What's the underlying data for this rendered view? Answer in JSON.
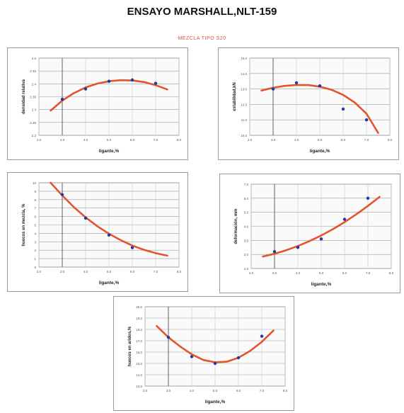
{
  "title": "ENSAYO MARSHALL,NLT-159",
  "subtitle": "MEZCLA TIPO S20",
  "colors": {
    "curve": "#e3542c",
    "point": "#1f3aa8",
    "grid": "#bdbdbd",
    "axis": "#555555"
  },
  "chart_data": [
    {
      "type": "scatter",
      "xlabel": "ligante,%",
      "ylabel": "densidad relativa",
      "xlim": [
        2,
        8
      ],
      "ylim": [
        2.2,
        2.5
      ],
      "xticks": [
        "2.0",
        "3.0",
        "4.0",
        "5.0",
        "6.0",
        "7.0",
        "8.0"
      ],
      "yticks": [
        "2.2",
        "2.25",
        "2.3",
        "2.35",
        "2.4",
        "2.45",
        "2.5"
      ],
      "points": {
        "x": [
          3,
          4,
          5,
          6,
          7
        ],
        "y": [
          2.34,
          2.38,
          2.41,
          2.415,
          2.402
        ]
      },
      "fit": {
        "x": [
          2.5,
          3,
          3.5,
          4,
          4.5,
          5,
          5.5,
          6,
          6.5,
          7,
          7.5
        ],
        "y": [
          2.296,
          2.335,
          2.364,
          2.386,
          2.401,
          2.41,
          2.414,
          2.413,
          2.407,
          2.395,
          2.378
        ]
      }
    },
    {
      "type": "scatter",
      "xlabel": "ligante,%",
      "ylabel": "estabilidad,kN",
      "xlim": [
        2,
        8
      ],
      "ylim": [
        10,
        15
      ],
      "xticks": [
        "2.0",
        "3.0",
        "4.0",
        "5.0",
        "6.0",
        "7.0",
        "8.0"
      ],
      "yticks": [
        "10.0",
        "11.0",
        "12.0",
        "13.0",
        "14.0",
        "15.0"
      ],
      "points": {
        "x": [
          3,
          4,
          5,
          6,
          7
        ],
        "y": [
          13.0,
          13.4,
          13.2,
          11.7,
          11.0
        ]
      },
      "fit": {
        "x": [
          2.5,
          3,
          3.5,
          4,
          4.5,
          5,
          5.5,
          6,
          6.5,
          7,
          7.5
        ],
        "y": [
          12.9,
          13.08,
          13.2,
          13.26,
          13.25,
          13.15,
          12.95,
          12.62,
          12.12,
          11.4,
          10.15
        ]
      }
    },
    {
      "type": "scatter",
      "xlabel": "ligante,%",
      "ylabel": "huecos en mezcla, %",
      "xlim": [
        2,
        8
      ],
      "ylim": [
        0,
        10
      ],
      "xticks": [
        "2.0",
        "3.0",
        "4.0",
        "5.0",
        "6.0",
        "7.0",
        "8.0"
      ],
      "yticks": [
        "0",
        "1",
        "2",
        "3",
        "4",
        "5",
        "6",
        "7",
        "8",
        "9",
        "10"
      ],
      "points": {
        "x": [
          3,
          4,
          5,
          6
        ],
        "y": [
          8.6,
          5.8,
          3.8,
          2.3
        ]
      },
      "fit": {
        "x": [
          2.5,
          3,
          3.5,
          4,
          4.5,
          5,
          5.5,
          6,
          6.5,
          7,
          7.5
        ],
        "y": [
          10.0,
          8.5,
          7.1,
          5.9,
          4.85,
          3.95,
          3.2,
          2.55,
          2.05,
          1.65,
          1.35
        ]
      }
    },
    {
      "type": "scatter",
      "xlabel": "ligante,%",
      "ylabel": "deformación, mm",
      "xlim": [
        2,
        8
      ],
      "ylim": [
        1,
        7
      ],
      "xticks": [
        "2.0",
        "3.0",
        "4.0",
        "5.0",
        "6.0",
        "7.0",
        "8.0"
      ],
      "yticks": [
        "1.0",
        "2.0",
        "3.0",
        "4.0",
        "5.0",
        "6.0",
        "7.0"
      ],
      "points": {
        "x": [
          3,
          4,
          5,
          6,
          7
        ],
        "y": [
          2.2,
          2.5,
          3.1,
          4.5,
          6.0
        ]
      },
      "fit": {
        "x": [
          2.5,
          3,
          3.5,
          4,
          4.5,
          5,
          5.5,
          6,
          6.5,
          7,
          7.5
        ],
        "y": [
          1.85,
          2.05,
          2.3,
          2.6,
          2.95,
          3.35,
          3.8,
          4.3,
          4.85,
          5.45,
          6.1
        ]
      }
    },
    {
      "type": "scatter",
      "xlabel": "ligante,%",
      "ylabel": "huecos en aridos,%",
      "xlim": [
        2,
        8
      ],
      "ylim": [
        13,
        20
      ],
      "xticks": [
        "2.0",
        "3.0",
        "4.0",
        "5.0",
        "6.0",
        "7.0",
        "8.0"
      ],
      "yticks": [
        "13.0",
        "14.0",
        "15.0",
        "16.0",
        "17.0",
        "18.0",
        "19.0",
        "20.0"
      ],
      "points": {
        "x": [
          3,
          4,
          5,
          6,
          7
        ],
        "y": [
          17.3,
          15.6,
          15.0,
          15.5,
          17.4
        ]
      },
      "fit": {
        "x": [
          2.5,
          3,
          3.5,
          4,
          4.5,
          5,
          5.5,
          6,
          6.5,
          7,
          7.5
        ],
        "y": [
          18.3,
          17.3,
          16.5,
          15.8,
          15.3,
          15.1,
          15.15,
          15.5,
          16.1,
          16.9,
          17.9
        ]
      }
    }
  ]
}
